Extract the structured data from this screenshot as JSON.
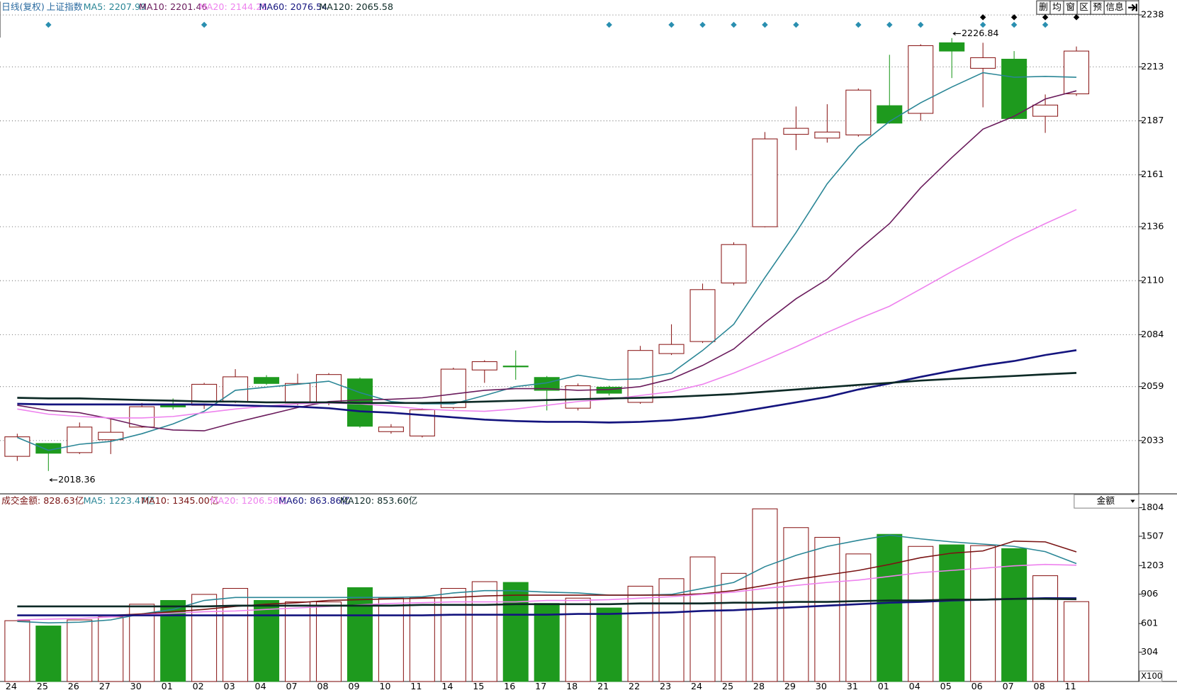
{
  "header": {
    "period": "日线(复权)",
    "symbol": "上证指数"
  },
  "toolbar": [
    "删",
    "均",
    "窗",
    "区",
    "预",
    "信息"
  ],
  "selector": "金额",
  "unit_label": "X100",
  "chart_data": [
    {
      "type": "candlestick",
      "categories": [
        "24",
        "25",
        "26",
        "27",
        "30",
        "01",
        "02",
        "03",
        "04",
        "07",
        "08",
        "09",
        "10",
        "11",
        "14",
        "15",
        "16",
        "17",
        "18",
        "21",
        "22",
        "23",
        "24",
        "25",
        "28",
        "29",
        "30",
        "31",
        "01",
        "04",
        "05",
        "06",
        "07",
        "08",
        "11"
      ],
      "open": [
        2025.4,
        2031.6,
        2027.2,
        2033.4,
        2039.5,
        2050.0,
        2050.0,
        2051.8,
        2063.4,
        2051.1,
        2051.4,
        2062.7,
        2037.3,
        2035.2,
        2048.9,
        2067.0,
        2068.9,
        2063.4,
        2048.6,
        2058.7,
        2051.4,
        2074.9,
        2080.7,
        2108.9,
        2136.0,
        2180.5,
        2178.7,
        2180.2,
        2194.3,
        2190.6,
        2224.6,
        2212.3,
        2216.7,
        2189.2,
        2200.0
      ],
      "high": [
        2036.3,
        2031.6,
        2041.7,
        2043.9,
        2051.1,
        2053.3,
        2060.8,
        2067.4,
        2064.5,
        2065.2,
        2065.5,
        2063.4,
        2040.9,
        2048.6,
        2068.1,
        2071.7,
        2076.4,
        2064.1,
        2060.5,
        2059.4,
        2078.6,
        2089.0,
        2108.6,
        2128.5,
        2181.6,
        2193.9,
        2195.0,
        2202.6,
        2218.8,
        2223.9,
        2226.84,
        2224.6,
        2220.6,
        2199.7,
        2222.8
      ],
      "low": [
        2023.2,
        2018.36,
        2026.5,
        2026.5,
        2039.2,
        2048.0,
        2048.2,
        2051.1,
        2059.8,
        2050.0,
        2050.0,
        2039.2,
        2036.3,
        2034.5,
        2048.2,
        2060.8,
        2062.3,
        2047.5,
        2047.5,
        2054.7,
        2050.7,
        2074.2,
        2080.0,
        2107.8,
        2135.7,
        2172.9,
        2176.5,
        2179.4,
        2185.6,
        2187.0,
        2207.6,
        2193.5,
        2187.7,
        2181.2,
        2199.0
      ],
      "close": [
        2034.8,
        2026.9,
        2039.5,
        2037.0,
        2049.3,
        2049.2,
        2060.1,
        2063.7,
        2060.5,
        2060.5,
        2064.8,
        2039.9,
        2039.5,
        2047.8,
        2067.4,
        2071.0,
        2068.5,
        2057.2,
        2059.4,
        2055.8,
        2076.4,
        2079.3,
        2105.7,
        2127.4,
        2178.3,
        2183.4,
        2181.6,
        2201.8,
        2185.9,
        2223.2,
        2220.6,
        2217.4,
        2188.1,
        2194.6,
        2220.6
      ],
      "up_color": "#8b1a1a",
      "down_color": "#1e9a1e",
      "series": [
        {
          "name": "MA5",
          "legend": "MA5: 2207.99",
          "color": "#2a8696",
          "values": [
            2034.5,
            2028.3,
            2031.2,
            2032.6,
            2036.3,
            2041.0,
            2047.1,
            2057.2,
            2058.7,
            2060.1,
            2061.6,
            2056.1,
            2051.8,
            2050.7,
            2050.7,
            2054.7,
            2059.0,
            2060.8,
            2064.5,
            2062.3,
            2062.7,
            2065.5,
            2076.4,
            2089.0,
            2111.5,
            2133.2,
            2156.7,
            2174.7,
            2186.7,
            2195.7,
            2203.3,
            2210.2,
            2208.0,
            2208.4,
            2207.99
          ]
        },
        {
          "name": "MA10",
          "legend": "MA10: 2201.46",
          "color": "#6a1b5c",
          "values": [
            2050.0,
            2047.5,
            2046.4,
            2043.5,
            2039.9,
            2038.1,
            2037.7,
            2041.7,
            2045.3,
            2048.9,
            2051.8,
            2052.5,
            2052.9,
            2053.6,
            2055.4,
            2057.2,
            2058.0,
            2058.0,
            2057.2,
            2057.6,
            2059.0,
            2062.7,
            2069.2,
            2077.1,
            2089.8,
            2101.3,
            2110.7,
            2124.8,
            2137.5,
            2154.8,
            2169.3,
            2183.0,
            2189.2,
            2197.5,
            2201.46
          ]
        },
        {
          "name": "MA20",
          "legend": "MA20: 2144.25",
          "color": "#ee82ee",
          "values": [
            2048.2,
            2045.7,
            2044.6,
            2043.9,
            2043.9,
            2044.6,
            2046.4,
            2048.2,
            2049.6,
            2050.7,
            2051.1,
            2050.7,
            2049.6,
            2048.2,
            2047.5,
            2047.1,
            2048.2,
            2050.0,
            2051.8,
            2052.9,
            2054.7,
            2056.5,
            2060.1,
            2065.5,
            2071.7,
            2078.2,
            2085.1,
            2091.6,
            2097.7,
            2106.0,
            2114.4,
            2122.3,
            2130.3,
            2137.5,
            2144.25
          ]
        },
        {
          "name": "MA60",
          "legend": "MA60: 2076.54",
          "color": "#14147e",
          "values": [
            2050.7,
            2050.4,
            2050.4,
            2050.4,
            2050.4,
            2050.4,
            2050.4,
            2050.0,
            2049.6,
            2049.3,
            2048.6,
            2047.1,
            2046.4,
            2045.3,
            2044.2,
            2043.1,
            2042.4,
            2042.0,
            2042.0,
            2041.7,
            2042.0,
            2042.8,
            2044.2,
            2046.4,
            2048.9,
            2051.4,
            2054.0,
            2057.6,
            2060.5,
            2063.7,
            2066.6,
            2069.2,
            2071.3,
            2074.2,
            2076.54
          ]
        },
        {
          "name": "MA120",
          "legend": "MA120: 2065.58",
          "color": "#0d2a26",
          "values": [
            2053.6,
            2053.3,
            2053.3,
            2052.9,
            2052.5,
            2052.2,
            2051.8,
            2051.8,
            2051.4,
            2051.4,
            2051.4,
            2051.1,
            2051.1,
            2051.1,
            2051.4,
            2051.8,
            2052.2,
            2052.5,
            2052.9,
            2053.3,
            2053.6,
            2054.0,
            2054.7,
            2055.4,
            2056.5,
            2057.6,
            2058.7,
            2059.8,
            2060.8,
            2061.9,
            2062.7,
            2063.4,
            2064.1,
            2064.9,
            2065.58
          ]
        }
      ],
      "annotations": [
        "2226.84",
        "2018.36"
      ],
      "ylim": [
        2007.7,
        2244.1
      ],
      "yticks": [
        2238,
        2213,
        2187,
        2161,
        2136,
        2110,
        2084,
        2059,
        2033
      ],
      "grid": true
    },
    {
      "type": "bar",
      "title": "成交金额: 828.63亿",
      "values": [
        631,
        576,
        639,
        670,
        802,
        841,
        904,
        966,
        841,
        826,
        826,
        974,
        865,
        872,
        966,
        1036,
        1028,
        810,
        865,
        763,
        989,
        1067,
        1293,
        1122,
        1792,
        1597,
        1496,
        1324,
        1527,
        1402,
        1418,
        1410,
        1379,
        1098,
        828.63
      ],
      "series": [
        {
          "name": "MA5",
          "legend": "MA5: 1223.47亿",
          "color": "#2a8696",
          "values": [
            623,
            608,
            615,
            639,
            701,
            748,
            841,
            872,
            872,
            872,
            872,
            872,
            872,
            880,
            919,
            943,
            943,
            927,
            919,
            896,
            896,
            904,
            966,
            1028,
            1192,
            1309,
            1402,
            1465,
            1519,
            1480,
            1449,
            1426,
            1402,
            1348,
            1223.47
          ]
        },
        {
          "name": "MA10",
          "legend": "MA10: 1345.00亿",
          "color": "#7a1414",
          "values": [
            686,
            686,
            686,
            686,
            701,
            724,
            748,
            779,
            802,
            818,
            841,
            849,
            857,
            865,
            872,
            888,
            896,
            896,
            896,
            896,
            896,
            896,
            911,
            943,
            997,
            1059,
            1106,
            1153,
            1215,
            1285,
            1332,
            1355,
            1457,
            1449,
            1345.0
          ]
        },
        {
          "name": "MA20",
          "legend": "MA20: 1206.58亿",
          "color": "#ee82ee",
          "values": [
            639,
            647,
            654,
            670,
            693,
            709,
            724,
            732,
            748,
            763,
            779,
            795,
            810,
            818,
            826,
            826,
            826,
            841,
            841,
            849,
            865,
            880,
            904,
            927,
            966,
            997,
            1028,
            1052,
            1091,
            1130,
            1153,
            1176,
            1200,
            1215,
            1206.58
          ]
        },
        {
          "name": "MA60",
          "legend": "MA60: 863.86亿",
          "color": "#14147e",
          "values": [
            686,
            686,
            686,
            686,
            686,
            686,
            686,
            686,
            686,
            686,
            686,
            686,
            686,
            686,
            693,
            693,
            693,
            693,
            701,
            701,
            709,
            717,
            732,
            740,
            756,
            771,
            787,
            802,
            818,
            826,
            841,
            849,
            857,
            865,
            863.86
          ]
        },
        {
          "name": "MA120",
          "legend": "MA120: 853.60亿",
          "color": "#0d2a26",
          "values": [
            779,
            779,
            779,
            779,
            779,
            779,
            779,
            787,
            787,
            787,
            787,
            787,
            787,
            795,
            795,
            795,
            802,
            802,
            802,
            802,
            810,
            810,
            810,
            818,
            818,
            826,
            826,
            834,
            841,
            841,
            849,
            849,
            857,
            857,
            853.6
          ]
        }
      ],
      "ylim": [
        0,
        1932
      ],
      "yticks": [
        304,
        601,
        906,
        1203,
        1507,
        1804
      ]
    }
  ]
}
